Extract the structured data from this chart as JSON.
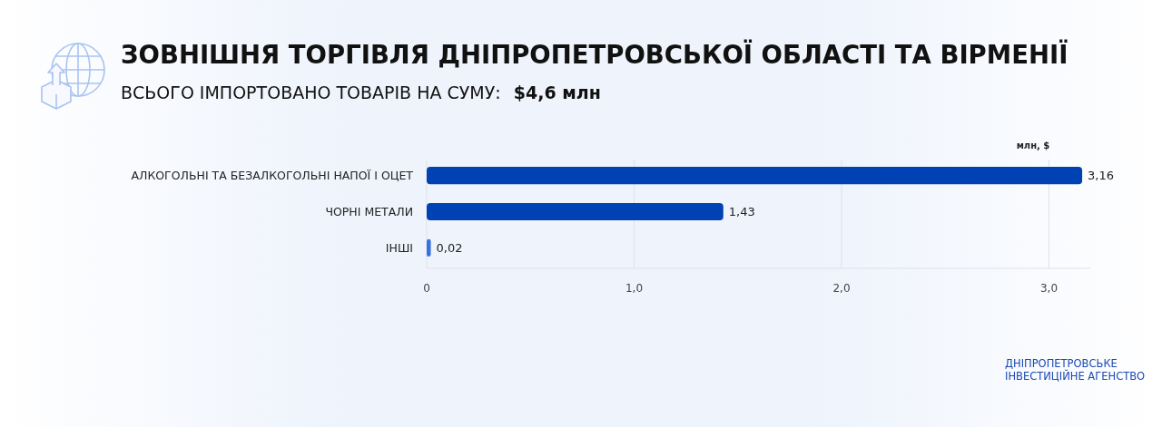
{
  "chart_data": {
    "type": "bar",
    "orientation": "horizontal",
    "title": "ЗОВНІШНЯ ТОРГІВЛЯ ДНІПРОПЕТРОВСЬКОЇ ОБЛАСТІ ТА ВІРМЕНІЇ",
    "subtitle": "ВСЬОГО ІМПОРТОВАНО ТОВАРІВ НА СУМУ: $4,6 млн",
    "xlabel": "млн, $",
    "categories": [
      "АЛКОГОЛЬНІ ТА БЕЗАЛКОГОЛЬНІ НАПОЇ І ОЦЕТ",
      "ЧОРНІ МЕТАЛИ",
      "ІНШІ"
    ],
    "values": [
      3.16,
      1.43,
      0.02
    ],
    "colors": [
      "#0041b3",
      "#0041b3",
      "#3a72dc"
    ],
    "value_labels": [
      "3,16",
      "1,43",
      "0,02"
    ],
    "xlim": [
      0,
      3.2
    ],
    "xticks": [
      0,
      {
        "value": 1,
        "label": "1,0"
      },
      {
        "value": 2,
        "label": "2,0"
      },
      {
        "value": 3,
        "label": "3,0"
      }
    ],
    "grid": "x",
    "annotations": [
      "ДНІПРОПЕТРОВСЬКЕ\nІНВЕСТИЦІЙНЕ АГЕНСТВО"
    ]
  }
}
